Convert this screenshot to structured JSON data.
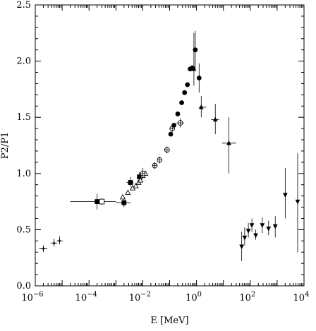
{
  "chart_data": {
    "type": "scatter",
    "xlabel": "E [MeV]",
    "ylabel": "P2/P1",
    "xscale": "log",
    "xlim": [
      1e-06,
      10000.0
    ],
    "ylim": [
      0.0,
      2.5
    ],
    "grid": false,
    "x_tick_labels": [
      {
        "x": 1e-06,
        "base": "10",
        "exp": "−6"
      },
      {
        "x": 0.0001,
        "base": "10",
        "exp": "−4"
      },
      {
        "x": 0.01,
        "base": "10",
        "exp": "−2"
      },
      {
        "x": 1.0,
        "base": "10",
        "exp": "0"
      },
      {
        "x": 100.0,
        "base": "10",
        "exp": "2"
      },
      {
        "x": 10000.0,
        "base": "10",
        "exp": "4"
      }
    ],
    "y_tick_labels": [
      {
        "y": 0.0,
        "label": "0.0"
      },
      {
        "y": 0.5,
        "label": "0.5"
      },
      {
        "y": 1.0,
        "label": "1.0"
      },
      {
        "y": 1.5,
        "label": "1.5"
      },
      {
        "y": 2.0,
        "label": "2.0"
      },
      {
        "y": 2.5,
        "label": "2.5"
      }
    ],
    "series": [
      {
        "marker": "star",
        "points": [
          {
            "x": 2e-06,
            "y": 0.33,
            "xerr": [
              1.4e-06,
              2.8e-06
            ],
            "yerr": [
              0.3,
              0.36
            ]
          },
          {
            "x": 5e-06,
            "y": 0.38,
            "xerr": [
              3.7e-06,
              6.6e-06
            ],
            "yerr": [
              0.35,
              0.42
            ]
          },
          {
            "x": 8e-06,
            "y": 0.4,
            "xerr": [
              6.3e-06,
              1.05e-05
            ],
            "yerr": [
              0.37,
              0.44
            ]
          }
        ]
      },
      {
        "marker": "filled-square",
        "points": [
          {
            "x": 0.0002,
            "y": 0.75,
            "xerr": [
              2e-05,
              0.001
            ],
            "yerr": [
              0.68,
              0.82
            ]
          },
          {
            "x": 0.002,
            "y": 0.74,
            "xerr": [
              0.001,
              0.0035
            ],
            "yerr": [
              0.7,
              0.79
            ]
          },
          {
            "x": 0.0035,
            "y": 0.92,
            "xerr": [
              0.0025,
              0.0045
            ],
            "yerr": [
              0.88,
              0.97
            ]
          },
          {
            "x": 0.0075,
            "y": 0.97,
            "xerr": [
              0.006,
              0.009
            ],
            "yerr": [
              0.93,
              1.01
            ]
          }
        ]
      },
      {
        "marker": "open-square",
        "points": [
          {
            "x": 0.0003,
            "y": 0.75,
            "xerr": [
              0.0002,
              0.0004
            ],
            "yerr": [
              0.72,
              0.78
            ]
          }
        ]
      },
      {
        "marker": "open-triangle",
        "points": [
          {
            "x": 0.0018,
            "y": 0.79,
            "yerr": [
              0.77,
              0.81
            ]
          },
          {
            "x": 0.0028,
            "y": 0.83,
            "yerr": [
              0.81,
              0.85
            ]
          },
          {
            "x": 0.0042,
            "y": 0.87,
            "yerr": [
              0.85,
              0.89
            ]
          },
          {
            "x": 0.0055,
            "y": 0.89,
            "yerr": [
              0.87,
              0.91
            ]
          },
          {
            "x": 0.007,
            "y": 0.92,
            "yerr": [
              0.9,
              0.94
            ]
          },
          {
            "x": 0.0082,
            "y": 0.94,
            "yerr": [
              0.92,
              0.96
            ]
          },
          {
            "x": 0.01,
            "y": 0.98,
            "yerr": [
              0.96,
              1.0
            ]
          },
          {
            "x": 0.0125,
            "y": 1.0,
            "yerr": [
              0.98,
              1.02
            ]
          }
        ]
      },
      {
        "marker": "open-circle-plus",
        "points": [
          {
            "x": 0.01,
            "y": 1.0,
            "yerr": [
              0.95,
              1.05
            ]
          },
          {
            "x": 0.028,
            "y": 1.07,
            "yerr": [
              1.04,
              1.1
            ]
          },
          {
            "x": 0.042,
            "y": 1.12,
            "yerr": [
              1.09,
              1.15
            ]
          },
          {
            "x": 0.08,
            "y": 1.21,
            "yerr": [
              1.18,
              1.24
            ]
          },
          {
            "x": 0.125,
            "y": 1.4,
            "yerr": [
              1.37,
              1.43
            ]
          },
          {
            "x": 0.25,
            "y": 1.45,
            "xerr": [
              0.18,
              0.34
            ],
            "yerr": [
              1.41,
              1.49
            ]
          }
        ]
      },
      {
        "marker": "filled-circle",
        "points": [
          {
            "x": 0.11,
            "y": 1.35
          },
          {
            "x": 0.145,
            "y": 1.43
          },
          {
            "x": 0.2,
            "y": 1.53
          },
          {
            "x": 0.28,
            "y": 1.63
          },
          {
            "x": 0.36,
            "y": 1.72
          },
          {
            "x": 0.46,
            "y": 1.79
          },
          {
            "x": 0.58,
            "y": 1.93
          },
          {
            "x": 0.7,
            "y": 1.94
          },
          {
            "x": 0.9,
            "y": 2.1,
            "yerr": [
              1.93,
              2.27
            ]
          },
          {
            "x": 1.25,
            "y": 1.85,
            "yerr": [
              1.72,
              1.98
            ]
          }
        ]
      },
      {
        "marker": "filled-triangle-up",
        "points": [
          {
            "x": 0.8,
            "y": 1.93,
            "yerr": [
              1.78,
              2.25
            ]
          },
          {
            "x": 1.5,
            "y": 1.59,
            "xerr": [
              1.2,
              2.3
            ],
            "yerr": [
              1.5,
              1.69
            ]
          },
          {
            "x": 5.0,
            "y": 1.48,
            "xerr": [
              3.5,
              7.0
            ],
            "yerr": [
              1.35,
              1.62
            ]
          },
          {
            "x": 16.0,
            "y": 1.27,
            "xerr": [
              9.0,
              30.0
            ],
            "yerr": [
              1.0,
              1.5
            ]
          }
        ]
      },
      {
        "marker": "filled-triangle-down",
        "points": [
          {
            "x": 48.0,
            "y": 0.35,
            "yerr": [
              0.22,
              0.48
            ]
          },
          {
            "x": 62.0,
            "y": 0.43,
            "yerr": [
              0.36,
              0.52
            ]
          },
          {
            "x": 85.0,
            "y": 0.49,
            "yerr": [
              0.43,
              0.56
            ]
          },
          {
            "x": 115.0,
            "y": 0.54,
            "yerr": [
              0.48,
              0.6
            ]
          },
          {
            "x": 160.0,
            "y": 0.45,
            "yerr": [
              0.41,
              0.5
            ]
          },
          {
            "x": 280.0,
            "y": 0.54,
            "yerr": [
              0.47,
              0.61
            ]
          },
          {
            "x": 480.0,
            "y": 0.51,
            "yerr": [
              0.45,
              0.58
            ]
          },
          {
            "x": 850.0,
            "y": 0.53,
            "yerr": [
              0.43,
              0.62
            ]
          },
          {
            "x": 2000.0,
            "y": 0.81,
            "yerr": [
              0.6,
              1.05
            ]
          },
          {
            "x": 5800.0,
            "y": 0.75,
            "yerr": [
              0.3,
              1.18
            ]
          }
        ]
      }
    ]
  }
}
